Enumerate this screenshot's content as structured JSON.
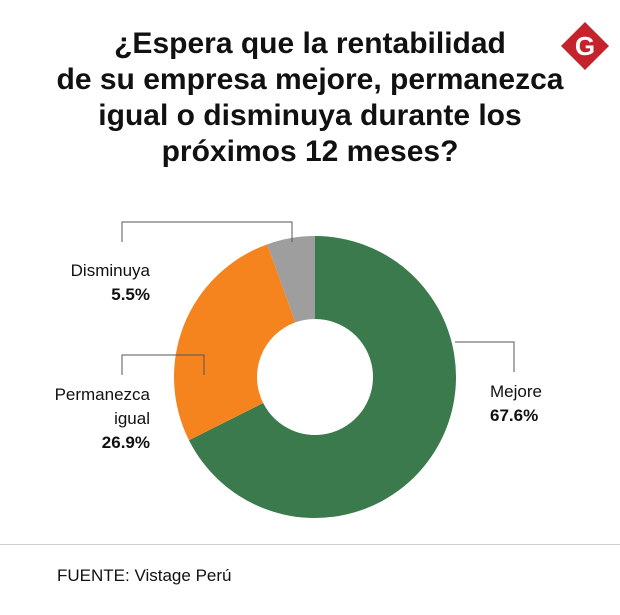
{
  "title_lines": [
    "¿Espera que la rentabilidad",
    "de su empresa mejore, permanezca",
    "igual o disminuya durante los",
    "próximos 12 meses?"
  ],
  "logo_letter": "G",
  "source": "FUENTE: Vistage Perú",
  "colors": {
    "mejore": "#3a7a4c",
    "permanezca": "#f5841f",
    "disminuya": "#9e9e9e",
    "logo": "#c4232d",
    "leader": "#555555"
  },
  "chart_data": {
    "type": "pie",
    "donut": true,
    "title": "¿Espera que la rentabilidad de su empresa mejore, permanezca igual o disminuya durante los próximos 12 meses?",
    "slices": [
      {
        "label": "Mejore",
        "value": 67.6,
        "value_label": "67.6%"
      },
      {
        "label": "Permanezca igual",
        "label_lines": [
          "Permanezca",
          "igual"
        ],
        "value": 26.9,
        "value_label": "26.9%"
      },
      {
        "label": "Disminuya",
        "value": 5.5,
        "value_label": "5.5%"
      }
    ],
    "legend": "none",
    "source": "FUENTE: Vistage Perú"
  }
}
